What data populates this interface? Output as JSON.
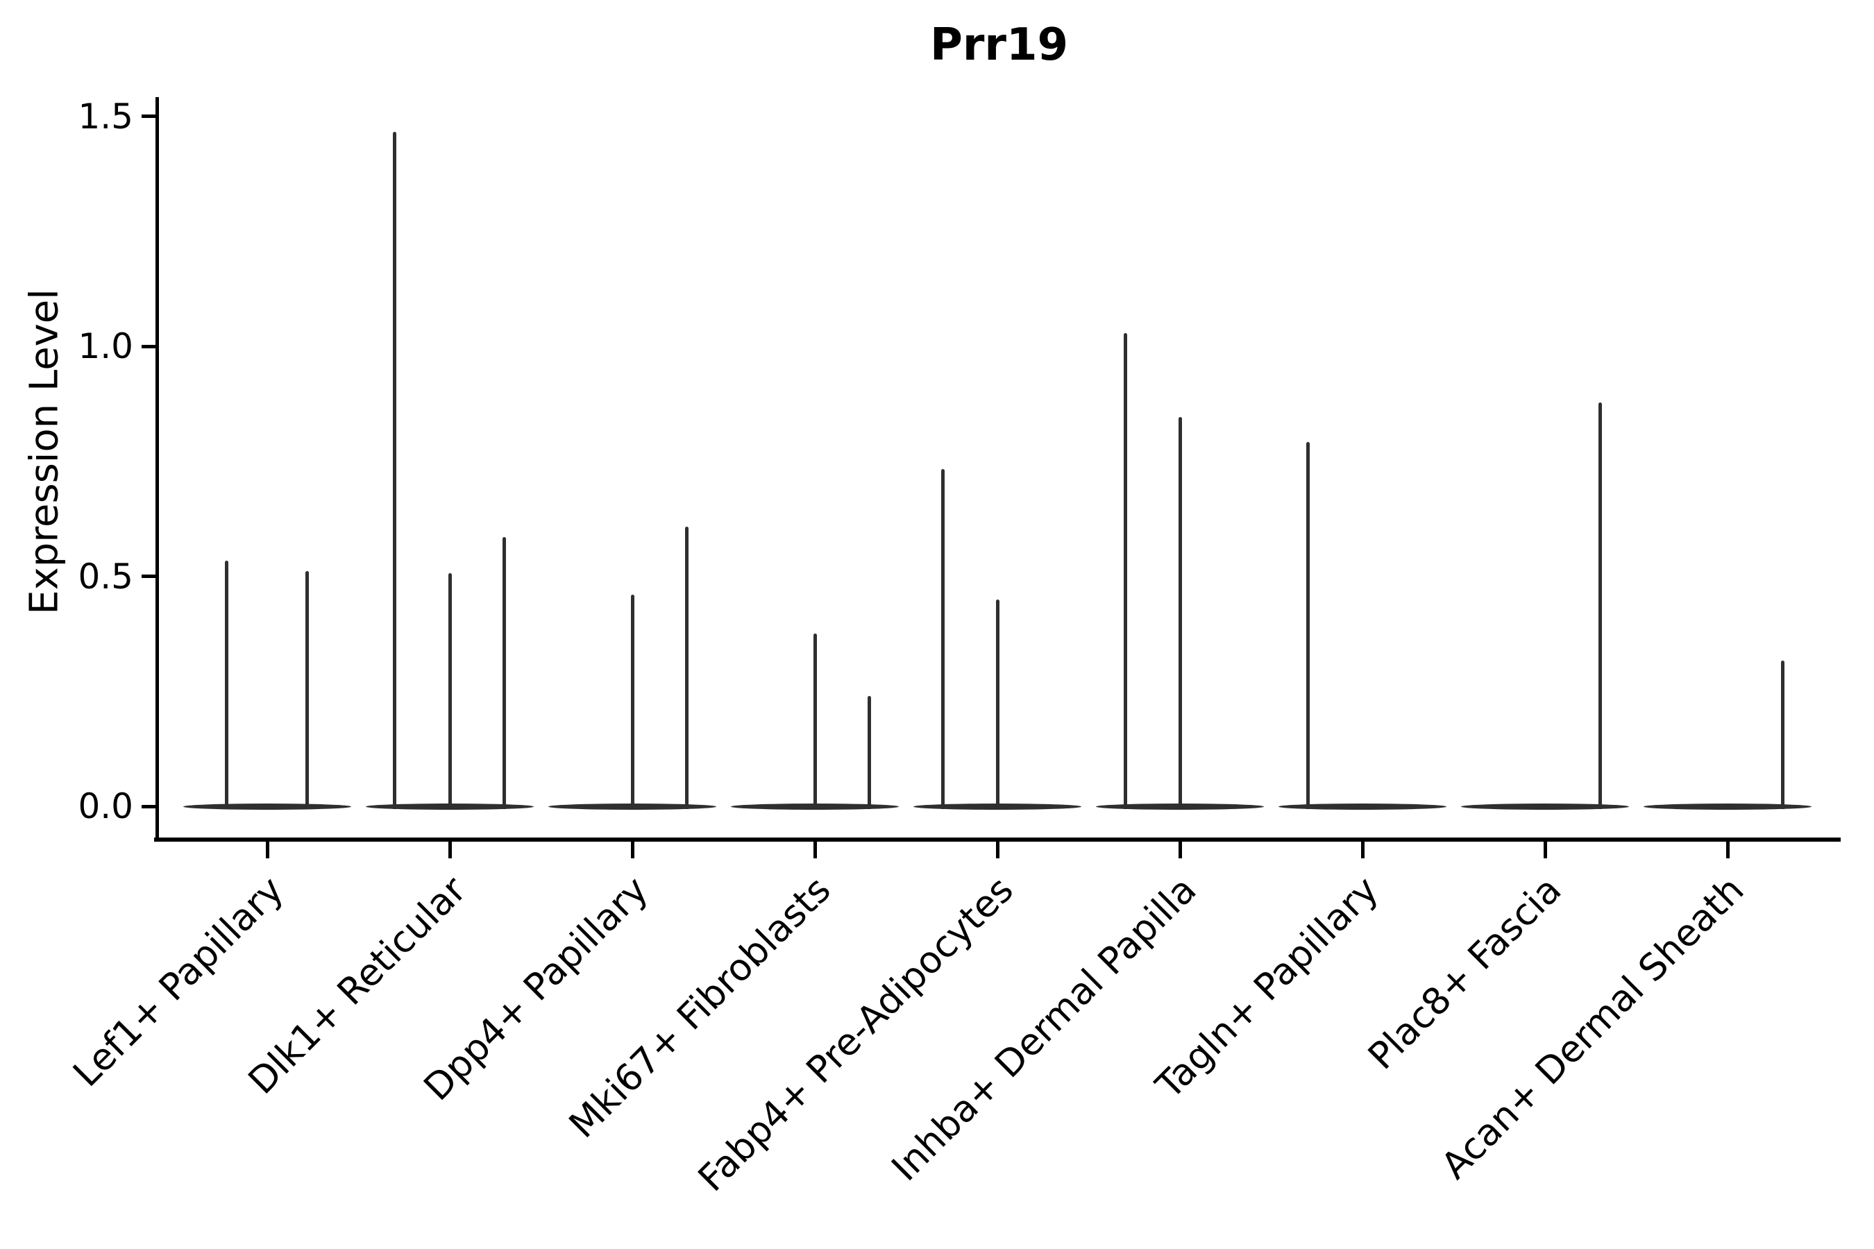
{
  "figure": {
    "title": "Prr19"
  },
  "chart_data": {
    "type": "violin",
    "title": "Prr19",
    "xlabel": "",
    "ylabel": "Expression Level",
    "ylim": [
      0,
      1.5
    ],
    "yticks": [
      0.0,
      0.5,
      1.0,
      1.5
    ],
    "ytick_labels": [
      "0.0",
      "0.5",
      "1.0",
      "1.5"
    ],
    "x_label_rotation_deg": 45,
    "grid": false,
    "legend_position": "none",
    "categories": [
      "Lef1+ Papillary",
      "Dlk1+ Reticular",
      "Dpp4+ Papillary",
      "Mki67+ Fibroblasts",
      "Fabp4+ Pre-Adipocytes",
      "Inhba+ Dermal Papilla",
      "Tagln+ Papillary",
      "Plac8+ Fascia",
      "Acan+ Dermal Sheath"
    ],
    "groups": [
      {
        "label": "Lef1+ Papillary",
        "baseline_value": 0.0,
        "spikes": [
          {
            "value": 0.534,
            "offset": -0.224
          },
          {
            "value": 0.512,
            "offset": 0.217
          }
        ]
      },
      {
        "label": "Dlk1+ Reticular",
        "baseline_value": 0.0,
        "spikes": [
          {
            "value": 1.467,
            "offset": -0.304
          },
          {
            "value": 0.507,
            "offset": 0.0
          },
          {
            "value": 0.585,
            "offset": 0.297
          }
        ]
      },
      {
        "label": "Dpp4+ Papillary",
        "baseline_value": 0.0,
        "spikes": [
          {
            "value": 0.46,
            "offset": 0.0
          },
          {
            "value": 0.608,
            "offset": 0.3
          }
        ]
      },
      {
        "label": "Mki67+ Fibroblasts",
        "baseline_value": 0.0,
        "spikes": [
          {
            "value": 0.376,
            "offset": 0.0
          },
          {
            "value": 0.24,
            "offset": 0.3
          }
        ]
      },
      {
        "label": "Fabp4+ Pre-Adipocytes",
        "baseline_value": 0.0,
        "spikes": [
          {
            "value": 0.733,
            "offset": -0.3
          },
          {
            "value": 0.45,
            "offset": 0.0
          }
        ]
      },
      {
        "label": "Inhba+ Dermal Papilla",
        "baseline_value": 0.0,
        "spikes": [
          {
            "value": 1.029,
            "offset": -0.297
          },
          {
            "value": 0.847,
            "offset": 0.002
          }
        ]
      },
      {
        "label": "Tagln+ Papillary",
        "baseline_value": 0.0,
        "spikes": [
          {
            "value": 0.792,
            "offset": -0.3
          }
        ]
      },
      {
        "label": "Plac8+ Fascia",
        "baseline_value": 0.0,
        "spikes": [
          {
            "value": 0.878,
            "offset": 0.304
          }
        ]
      },
      {
        "label": "Acan+ Dermal Sheath",
        "baseline_value": 0.0,
        "spikes": [
          {
            "value": 0.317,
            "offset": 0.304
          }
        ]
      }
    ],
    "style": {
      "violin_color": "#2f2f2f",
      "axis_color": "#000000",
      "text_color": "#000000",
      "background_color": "#ffffff"
    }
  }
}
